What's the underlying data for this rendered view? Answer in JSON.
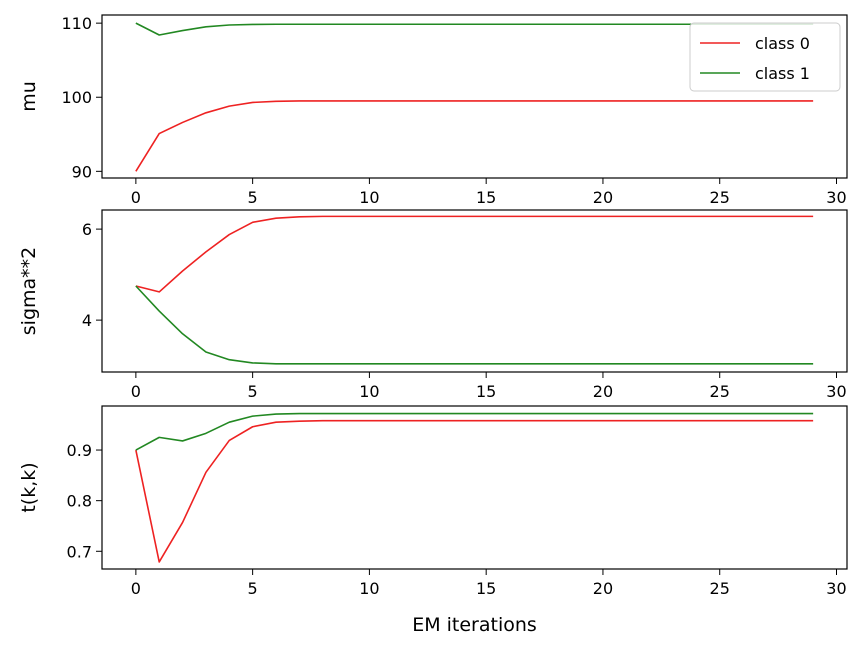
{
  "chart_data": {
    "type": "line",
    "layout": "vertical-subplots",
    "xlabel": "EM iterations",
    "xlim": [
      -1.45,
      30.45
    ],
    "xticks": [
      0,
      5,
      10,
      15,
      20,
      25,
      30
    ],
    "x": [
      0,
      1,
      2,
      3,
      4,
      5,
      6,
      7,
      8,
      9,
      10,
      11,
      12,
      13,
      14,
      15,
      16,
      17,
      18,
      19,
      20,
      21,
      22,
      23,
      24,
      25,
      26,
      27,
      28,
      29
    ],
    "legend": {
      "placement": "upper right",
      "subplot": 0,
      "entries": [
        "class 0",
        "class 1"
      ]
    },
    "colors": {
      "class 0": "#ee2222",
      "class 1": "#228822"
    },
    "subplots": [
      {
        "ylabel": "mu",
        "ylim": [
          89.1,
          111.1
        ],
        "yticks": [
          90,
          100,
          110
        ],
        "series": [
          {
            "name": "class 0",
            "values": [
              90.0,
              95.1,
              96.6,
              97.9,
              98.8,
              99.3,
              99.45,
              99.5,
              99.5,
              99.5,
              99.5,
              99.5,
              99.5,
              99.5,
              99.5,
              99.5,
              99.5,
              99.5,
              99.5,
              99.5,
              99.5,
              99.5,
              99.5,
              99.5,
              99.5,
              99.5,
              99.5,
              99.5,
              99.5,
              99.5
            ]
          },
          {
            "name": "class 1",
            "values": [
              110.0,
              108.4,
              109.0,
              109.5,
              109.75,
              109.82,
              109.85,
              109.85,
              109.85,
              109.85,
              109.85,
              109.85,
              109.85,
              109.85,
              109.85,
              109.85,
              109.85,
              109.85,
              109.85,
              109.85,
              109.85,
              109.85,
              109.85,
              109.85,
              109.85,
              109.85,
              109.85,
              109.85,
              109.85,
              109.85
            ]
          }
        ]
      },
      {
        "ylabel": "sigma**2",
        "ylim": [
          2.86,
          6.42
        ],
        "yticks": [
          4,
          6
        ],
        "series": [
          {
            "name": "class 0",
            "values": [
              4.75,
              4.62,
              5.08,
              5.5,
              5.88,
              6.15,
              6.24,
              6.27,
              6.28,
              6.28,
              6.28,
              6.28,
              6.28,
              6.28,
              6.28,
              6.28,
              6.28,
              6.28,
              6.28,
              6.28,
              6.28,
              6.28,
              6.28,
              6.28,
              6.28,
              6.28,
              6.28,
              6.28,
              6.28,
              6.28
            ]
          },
          {
            "name": "class 1",
            "values": [
              4.75,
              4.2,
              3.7,
              3.3,
              3.13,
              3.06,
              3.04,
              3.04,
              3.04,
              3.04,
              3.04,
              3.04,
              3.04,
              3.04,
              3.04,
              3.04,
              3.04,
              3.04,
              3.04,
              3.04,
              3.04,
              3.04,
              3.04,
              3.04,
              3.04,
              3.04,
              3.04,
              3.04,
              3.04,
              3.04
            ]
          }
        ]
      },
      {
        "ylabel": "t(k,k)",
        "ylim": [
          0.665,
          0.987
        ],
        "yticks": [
          0.7,
          0.8,
          0.9
        ],
        "series": [
          {
            "name": "class 0",
            "values": [
              0.9,
              0.679,
              0.757,
              0.856,
              0.919,
              0.946,
              0.955,
              0.957,
              0.958,
              0.958,
              0.958,
              0.958,
              0.958,
              0.958,
              0.958,
              0.958,
              0.958,
              0.958,
              0.958,
              0.958,
              0.958,
              0.958,
              0.958,
              0.958,
              0.958,
              0.958,
              0.958,
              0.958,
              0.958,
              0.958
            ]
          },
          {
            "name": "class 1",
            "values": [
              0.9,
              0.925,
              0.918,
              0.933,
              0.955,
              0.967,
              0.971,
              0.972,
              0.972,
              0.972,
              0.972,
              0.972,
              0.972,
              0.972,
              0.972,
              0.972,
              0.972,
              0.972,
              0.972,
              0.972,
              0.972,
              0.972,
              0.972,
              0.972,
              0.972,
              0.972,
              0.972,
              0.972,
              0.972,
              0.972
            ]
          }
        ]
      }
    ]
  }
}
